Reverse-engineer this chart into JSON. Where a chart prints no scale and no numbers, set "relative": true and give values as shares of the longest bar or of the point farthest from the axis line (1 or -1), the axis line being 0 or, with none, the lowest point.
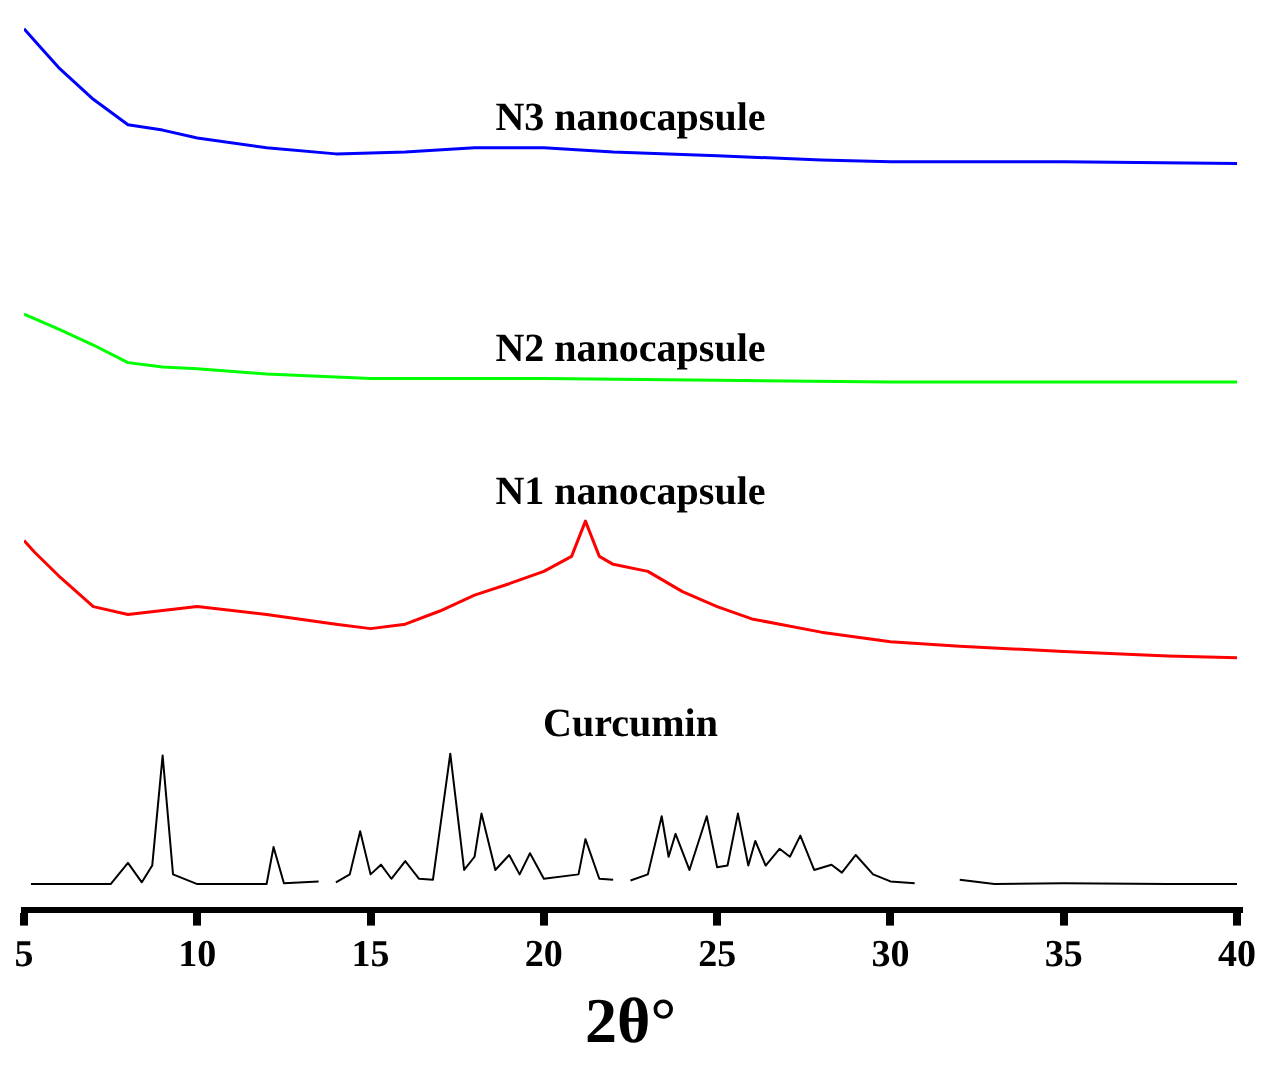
{
  "chart_data": {
    "type": "line",
    "relative": true,
    "xlabel": "2θ°",
    "xlim": [
      5,
      40
    ],
    "xticks": [
      5,
      10,
      15,
      20,
      25,
      30,
      35,
      40
    ],
    "grid": false,
    "legend": false,
    "marker": "none",
    "line_style": "solid",
    "series": [
      {
        "name": "N3 nanocapsule",
        "color": "#0000ff",
        "x": [
          5,
          5.5,
          6,
          7,
          8,
          9,
          10,
          12,
          14,
          16,
          18,
          20,
          22,
          25,
          28,
          30,
          35,
          40
        ],
        "values": [
          1,
          0.978,
          0.956,
          0.92,
          0.891,
          0.885,
          0.876,
          0.865,
          0.858,
          0.86,
          0.865,
          0.865,
          0.86,
          0.856,
          0.851,
          0.849,
          0.849,
          0.847
        ]
      },
      {
        "name": "N2 nanocapsule",
        "color": "#00ff00",
        "x": [
          5,
          6,
          7,
          8,
          9,
          10,
          12,
          15,
          20,
          25,
          30,
          35,
          40
        ],
        "values": [
          0.676,
          0.659,
          0.641,
          0.621,
          0.616,
          0.614,
          0.608,
          0.603,
          0.603,
          0.601,
          0.599,
          0.599,
          0.599
        ]
      },
      {
        "name": "N1 nanocapsule",
        "color": "#ff0000",
        "x": [
          5,
          5.3,
          6,
          7,
          8,
          10,
          12,
          14,
          15,
          16,
          17,
          18,
          19,
          20,
          20.8,
          21.2,
          21.6,
          22,
          23,
          24,
          25,
          26,
          28,
          30,
          32,
          35,
          38,
          40
        ],
        "values": [
          0.419,
          0.406,
          0.379,
          0.344,
          0.335,
          0.344,
          0.335,
          0.324,
          0.319,
          0.324,
          0.339,
          0.357,
          0.37,
          0.384,
          0.401,
          0.441,
          0.401,
          0.392,
          0.384,
          0.361,
          0.344,
          0.33,
          0.315,
          0.304,
          0.299,
          0.293,
          0.288,
          0.286
        ]
      },
      {
        "name": "Curcumin",
        "color": "#000000",
        "x": [
          5.2,
          7.5,
          8,
          8.4,
          8.7,
          9,
          9.3,
          10,
          12,
          12.2,
          12.5,
          13.5,
          13.6,
          14,
          14.4,
          14.7,
          15,
          15.3,
          15.6,
          16,
          16.4,
          16.8,
          17.3,
          17.7,
          18,
          18.2,
          18.6,
          19,
          19.3,
          19.6,
          20,
          21,
          21.2,
          21.6,
          22,
          22.2,
          22.5,
          23,
          23.4,
          23.6,
          23.8,
          24.2,
          24.7,
          25,
          25.3,
          25.6,
          25.9,
          26.1,
          26.4,
          26.8,
          27.1,
          27.4,
          27.8,
          28.3,
          28.6,
          29,
          29.5,
          30,
          30.7,
          31,
          32,
          33,
          35,
          38,
          40
        ],
        "values": [
          0.029,
          0.029,
          0.053,
          0.031,
          0.05,
          0.175,
          0.04,
          0.029,
          0.029,
          0.071,
          0.03,
          0.032,
          null,
          0.031,
          0.04,
          0.089,
          0.04,
          0.051,
          0.035,
          0.055,
          0.035,
          0.034,
          0.177,
          0.045,
          0.06,
          0.109,
          0.045,
          0.062,
          0.04,
          0.064,
          0.035,
          0.04,
          0.08,
          0.035,
          0.034,
          null,
          0.033,
          0.04,
          0.106,
          0.06,
          0.086,
          0.045,
          0.106,
          0.048,
          0.05,
          0.109,
          0.05,
          0.078,
          0.05,
          0.069,
          0.06,
          0.084,
          0.045,
          0.051,
          0.042,
          0.062,
          0.04,
          0.032,
          0.03,
          null,
          0.034,
          0.029,
          0.03,
          0.029,
          0.029
        ]
      }
    ]
  }
}
